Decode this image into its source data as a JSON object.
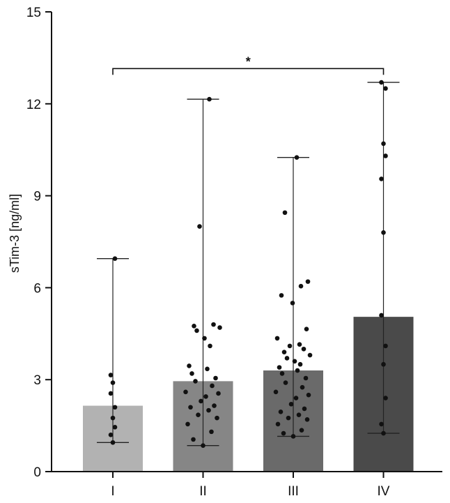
{
  "chart_data": {
    "type": "bar",
    "title": "",
    "xlabel": "",
    "ylabel": "sTim-3 [ng/ml]",
    "ylim": [
      0,
      15
    ],
    "yticks": [
      "0",
      "3",
      "6",
      "9",
      "12",
      "15"
    ],
    "categories": [
      "I",
      "II",
      "III",
      "IV"
    ],
    "values": [
      2.15,
      2.95,
      3.3,
      5.05
    ],
    "bar_colors": [
      "#b2b2b2",
      "#868686",
      "#6a6a6a",
      "#4a4a4a"
    ],
    "ranges": [
      {
        "min": 0.95,
        "max": 6.95
      },
      {
        "min": 0.85,
        "max": 12.15
      },
      {
        "min": 1.15,
        "max": 10.25
      },
      {
        "min": 1.25,
        "max": 12.7
      }
    ],
    "points": [
      [
        0.95,
        1.2,
        1.45,
        1.75,
        2.1,
        2.55,
        2.9,
        3.15,
        6.95
      ],
      [
        0.85,
        1.05,
        1.3,
        1.55,
        1.75,
        1.85,
        2.0,
        2.1,
        2.15,
        2.3,
        2.45,
        2.55,
        2.6,
        2.8,
        2.95,
        3.05,
        3.2,
        3.35,
        3.45,
        4.1,
        4.35,
        4.6,
        4.7,
        4.75,
        4.8,
        8.0,
        12.15
      ],
      [
        1.15,
        1.25,
        1.35,
        1.55,
        1.7,
        1.75,
        1.85,
        1.95,
        2.05,
        2.2,
        2.4,
        2.5,
        2.6,
        2.75,
        2.9,
        3.05,
        3.2,
        3.3,
        3.4,
        3.5,
        3.6,
        3.7,
        3.8,
        3.9,
        4.0,
        4.1,
        4.15,
        4.35,
        4.65,
        5.5,
        5.75,
        6.05,
        6.2,
        8.45,
        10.25
      ],
      [
        1.25,
        1.55,
        2.4,
        3.5,
        4.1,
        5.1,
        7.8,
        9.55,
        10.3,
        10.7,
        12.5,
        12.7
      ]
    ],
    "significance": {
      "from": "I",
      "to": "IV",
      "label": "*",
      "y": 13.15
    },
    "colors": {
      "axis": "#111111",
      "point": "#111111",
      "errorbar": "#222222"
    }
  }
}
